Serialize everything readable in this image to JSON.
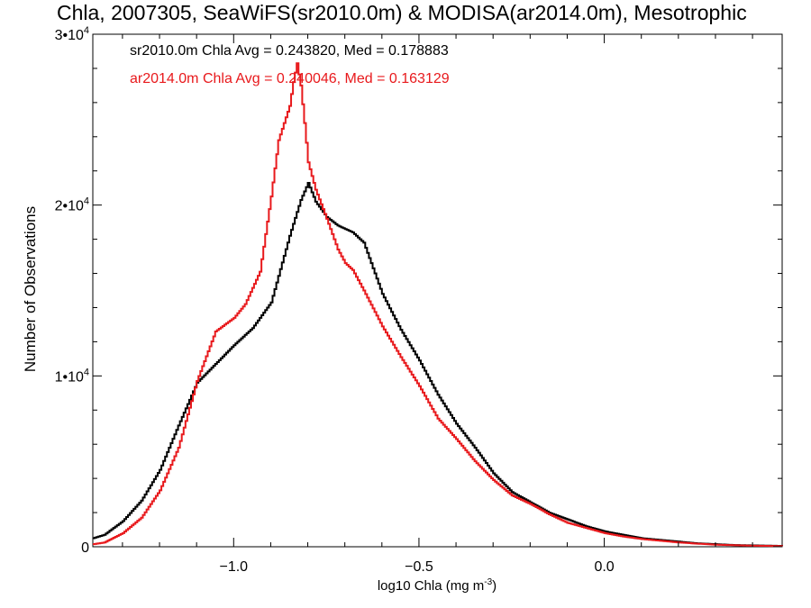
{
  "chart_data": {
    "type": "line",
    "title": "Chla, 2007305, SeaWiFS(sr2010.0m) & MODISA(ar2014.0m), Mesotrophic",
    "xlabel": "log10 Chla (mg m",
    "xlabel_sup": "-3",
    "xlabel_close": ")",
    "ylabel": "Number of Observations",
    "xlim": [
      -1.38,
      0.48
    ],
    "ylim": [
      0,
      30000
    ],
    "x_ticks": [
      {
        "value": -1.0,
        "label": "−1.0"
      },
      {
        "value": -0.5,
        "label": "−0.5"
      },
      {
        "value": 0.0,
        "label": "0.0"
      }
    ],
    "y_ticks": [
      {
        "value": 0,
        "label": "0",
        "sup": ""
      },
      {
        "value": 10000,
        "label": "1•10",
        "sup": "4"
      },
      {
        "value": 20000,
        "label": "2•10",
        "sup": "4"
      },
      {
        "value": 30000,
        "label": "3•10",
        "sup": "4"
      }
    ],
    "grid": false,
    "legend_position": "top-left",
    "series": [
      {
        "name": "sr2010.0m",
        "color": "#000000",
        "annotation": "sr2010.0m Chla Avg = 0.243820, Med = 0.178883",
        "x": [
          -1.38,
          -1.35,
          -1.3,
          -1.25,
          -1.2,
          -1.15,
          -1.1,
          -1.05,
          -1.0,
          -0.95,
          -0.9,
          -0.85,
          -0.82,
          -0.8,
          -0.78,
          -0.75,
          -0.72,
          -0.7,
          -0.68,
          -0.65,
          -0.6,
          -0.55,
          -0.5,
          -0.45,
          -0.4,
          -0.35,
          -0.3,
          -0.25,
          -0.2,
          -0.15,
          -0.1,
          -0.05,
          0.0,
          0.05,
          0.1,
          0.15,
          0.2,
          0.25,
          0.3,
          0.35,
          0.4,
          0.48
        ],
        "y": [
          500,
          700,
          1500,
          2700,
          4500,
          7100,
          9600,
          10700,
          11800,
          12800,
          14300,
          18200,
          20300,
          21300,
          20200,
          19300,
          18800,
          18600,
          18400,
          17800,
          14800,
          12700,
          10900,
          8900,
          7200,
          5800,
          4300,
          3200,
          2600,
          2000,
          1600,
          1200,
          900,
          700,
          500,
          400,
          300,
          200,
          150,
          100,
          80,
          50
        ]
      },
      {
        "name": "ar2014.0m",
        "color": "#e8191c",
        "annotation": "ar2014.0m Chla Avg = 0.240046, Med = 0.163129",
        "x": [
          -1.38,
          -1.35,
          -1.3,
          -1.25,
          -1.2,
          -1.15,
          -1.1,
          -1.05,
          -1.0,
          -0.97,
          -0.93,
          -0.9,
          -0.88,
          -0.85,
          -0.84,
          -0.83,
          -0.82,
          -0.81,
          -0.8,
          -0.78,
          -0.75,
          -0.72,
          -0.7,
          -0.68,
          -0.65,
          -0.6,
          -0.55,
          -0.5,
          -0.45,
          -0.4,
          -0.35,
          -0.3,
          -0.25,
          -0.2,
          -0.15,
          -0.1,
          -0.05,
          0.0,
          0.05,
          0.1,
          0.15,
          0.2,
          0.25,
          0.3,
          0.35,
          0.4,
          0.48
        ],
        "y": [
          150,
          250,
          800,
          1700,
          3300,
          5800,
          9700,
          12600,
          13400,
          14200,
          16100,
          20500,
          23800,
          25800,
          27200,
          28300,
          27000,
          24800,
          22500,
          20900,
          19200,
          17400,
          16600,
          16200,
          15000,
          12900,
          11100,
          9400,
          7500,
          6300,
          5000,
          3900,
          3000,
          2500,
          1900,
          1400,
          1100,
          800,
          600,
          450,
          350,
          250,
          180,
          120,
          90,
          60,
          40
        ]
      }
    ]
  }
}
